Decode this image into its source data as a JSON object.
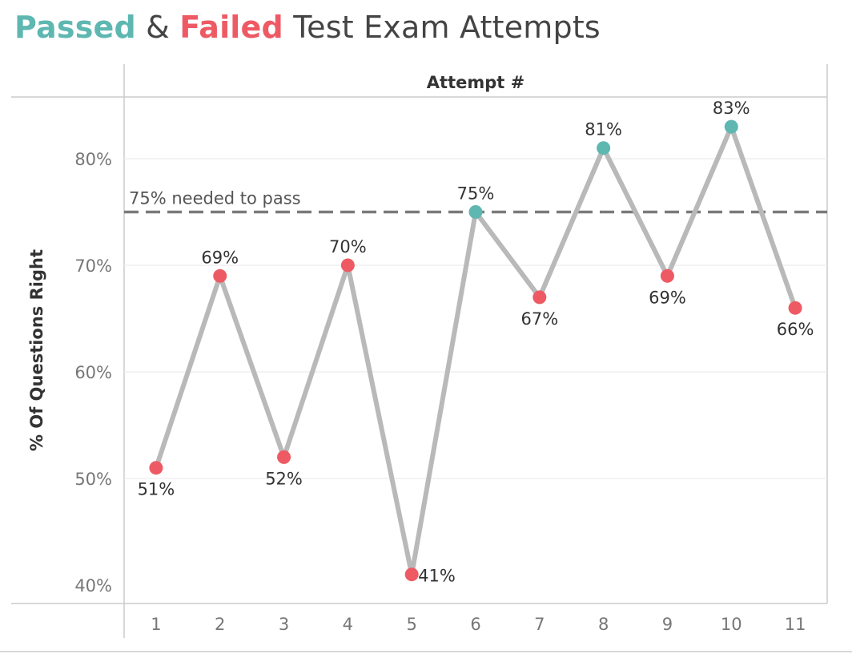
{
  "title": {
    "passed_word": "Passed",
    "joiner": "&",
    "failed_word": "Failed",
    "rest": "Test Exam Attempts"
  },
  "colors": {
    "passed": "#5eb7b1",
    "failed": "#ee5a64",
    "line": "#b9b9b9",
    "threshold": "#7a7a7a",
    "grid": "#ececec",
    "axis": "#cccccc",
    "tick_text": "#777777",
    "label_text": "#333333"
  },
  "chart_data": {
    "type": "line",
    "title": "Passed & Failed Test Exam Attempts",
    "column_header": "Attempt #",
    "ylabel": "% Of Questions Right",
    "ylim": [
      40,
      84
    ],
    "yticks": [
      40,
      50,
      60,
      70,
      80
    ],
    "ytick_labels": [
      "40%",
      "50%",
      "60%",
      "70%",
      "80%"
    ],
    "grid": true,
    "x": [
      1,
      2,
      3,
      4,
      5,
      6,
      7,
      8,
      9,
      10,
      11
    ],
    "xtick_labels": [
      "1",
      "2",
      "3",
      "4",
      "5",
      "6",
      "7",
      "8",
      "9",
      "10",
      "11"
    ],
    "values": [
      51,
      69,
      52,
      70,
      41,
      75,
      67,
      81,
      69,
      83,
      66
    ],
    "value_labels": [
      "51%",
      "69%",
      "52%",
      "70%",
      "41%",
      "75%",
      "67%",
      "81%",
      "69%",
      "83%",
      "66%"
    ],
    "status": [
      "failed",
      "failed",
      "failed",
      "failed",
      "failed",
      "passed",
      "failed",
      "passed",
      "failed",
      "passed",
      "failed"
    ],
    "label_side": [
      "below",
      "above",
      "below",
      "above",
      "right",
      "above",
      "below",
      "above",
      "below",
      "above",
      "below"
    ],
    "reference_line": {
      "value": 75,
      "label": "75% needed to pass"
    }
  }
}
